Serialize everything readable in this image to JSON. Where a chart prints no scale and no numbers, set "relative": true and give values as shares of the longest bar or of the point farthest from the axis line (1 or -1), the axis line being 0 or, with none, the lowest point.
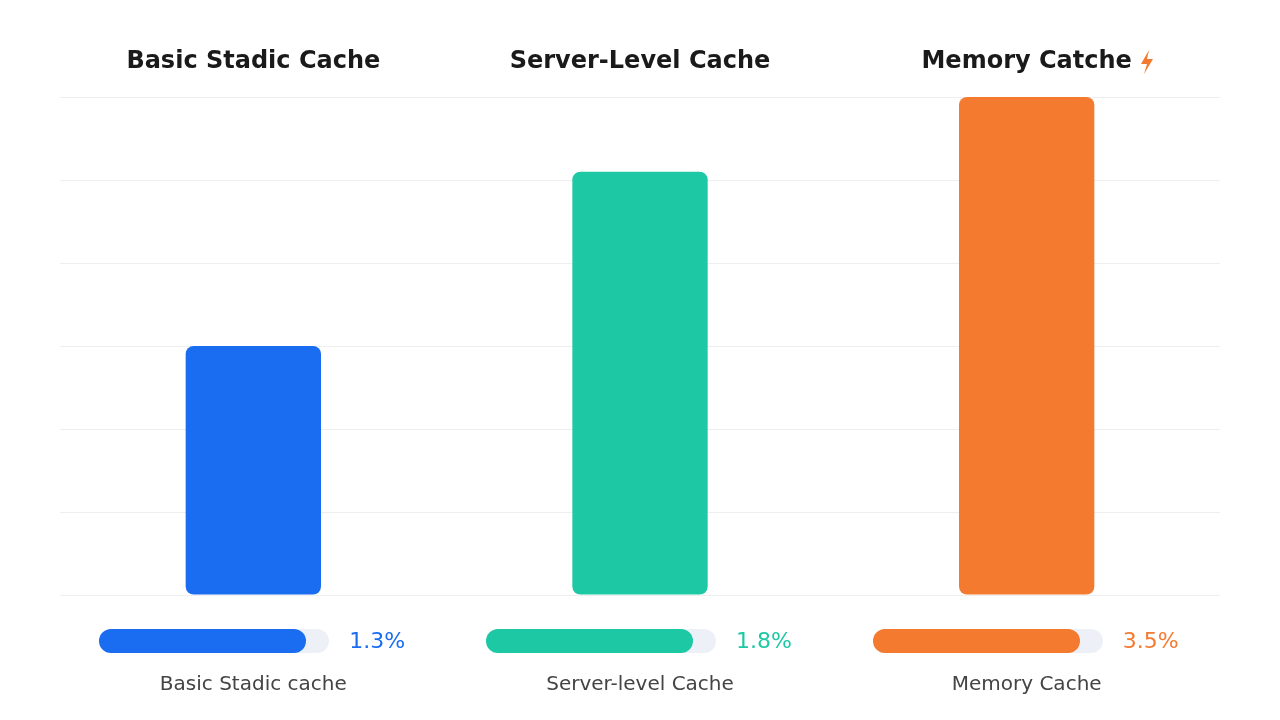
{
  "chart_data": {
    "type": "bar",
    "relative": true,
    "categories": [
      "Basic Stadic cache",
      "Server-level Cache",
      "Memory Cache"
    ],
    "series": [
      {
        "colors": [
          "#1a6cf0",
          "#1dc9a4",
          "#f47a30"
        ],
        "values": [
          0.5,
          0.85,
          1
        ]
      }
    ],
    "annotations": [
      "Basic Stadic Cache",
      "Server-Level Cache",
      "Memory Catche",
      "1.3%",
      "1.8%",
      "3.5%"
    ],
    "grid": "y",
    "legend": false
  }
}
